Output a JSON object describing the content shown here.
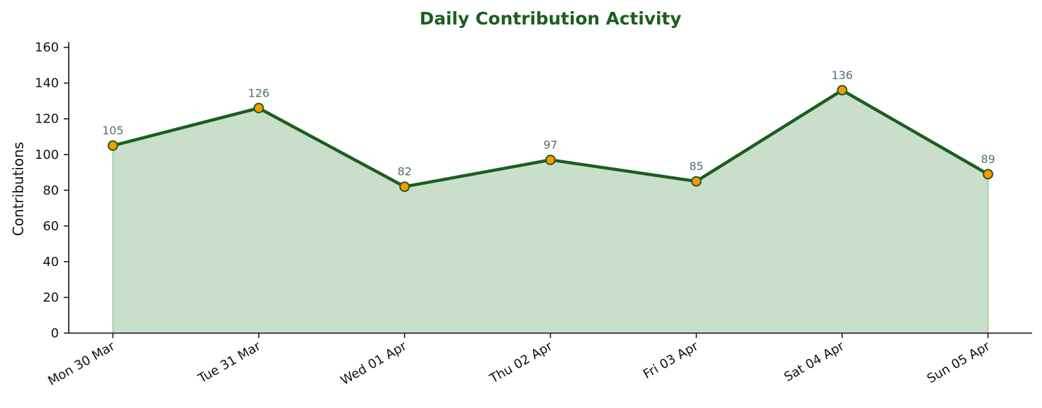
{
  "chart_data": {
    "type": "area",
    "title": "Daily Contribution Activity",
    "xlabel": "",
    "ylabel": "Contributions",
    "categories": [
      "Mon 30 Mar",
      "Tue 31 Mar",
      "Wed 01 Apr",
      "Thu 02 Apr",
      "Fri 03 Apr",
      "Sat 04 Apr",
      "Sun 05 Apr"
    ],
    "values": [
      105,
      126,
      82,
      97,
      85,
      136,
      89
    ],
    "data_labels": [
      "105",
      "126",
      "82",
      "97",
      "85",
      "136",
      "89"
    ],
    "ylim": [
      0,
      163
    ],
    "yticks": [
      0,
      20,
      40,
      60,
      80,
      100,
      120,
      140,
      160
    ],
    "grid": false,
    "legend": "none",
    "colors": {
      "title": "#1b5e20",
      "line": "#1b5e20",
      "fill": "#cadfcb",
      "fill_edge": "#9cc79f",
      "marker_fill": "#ff9800",
      "marker_edge": "#1b5e20",
      "data_label": "#546e7a",
      "axis": "#111111"
    }
  }
}
